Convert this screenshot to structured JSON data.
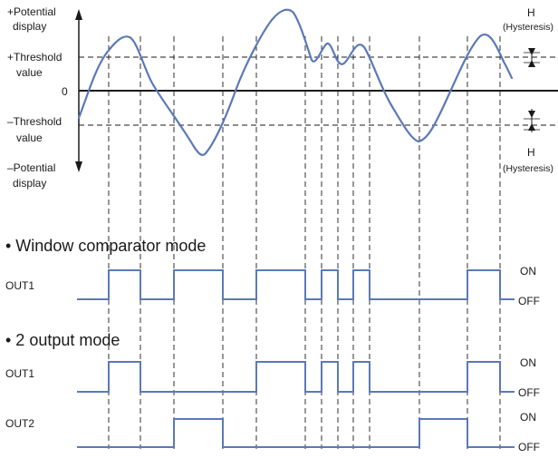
{
  "labels": {
    "pos_display_1": "+Potential",
    "pos_display_2": "display",
    "pos_threshold_1": "+Threshold",
    "pos_threshold_2": "value",
    "zero": "0",
    "neg_threshold_1": "–Threshold",
    "neg_threshold_2": "value",
    "neg_display_1": "–Potential",
    "neg_display_2": "display",
    "h_top": "H",
    "hyst_top": "(Hysteresis)",
    "h_bottom": "H",
    "hyst_bottom": "(Hysteresis)"
  },
  "window_mode": {
    "title": "• Window comparator mode",
    "out1": "OUT1",
    "on": "ON",
    "off": "OFF"
  },
  "two_output_mode": {
    "title": "• 2 output mode",
    "out1": "OUT1",
    "out2": "OUT2",
    "on1": "ON",
    "off1": "OFF",
    "on2": "ON",
    "off2": "OFF"
  },
  "colors": {
    "signal": "#5b79b8",
    "axis": "#1a1a1a",
    "dashed": "#1a1a1a"
  }
}
